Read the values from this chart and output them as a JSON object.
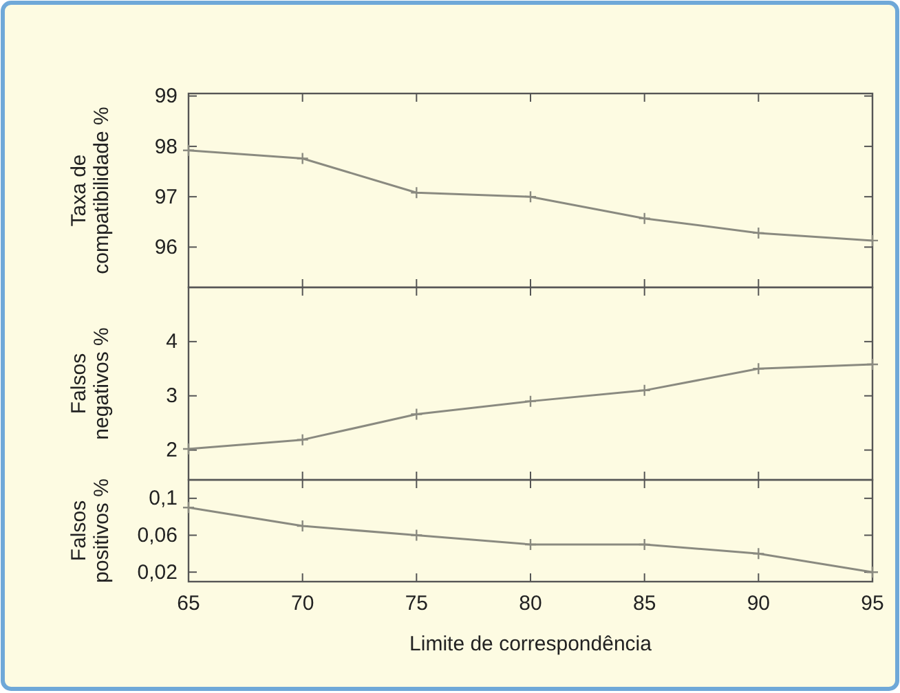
{
  "chart_data": [
    {
      "type": "line",
      "ylabel": "Taxa de compatibilidade %",
      "x": [
        65,
        70,
        75,
        80,
        85,
        90,
        95
      ],
      "xlim": [
        65,
        95
      ],
      "xticks": [
        65,
        70,
        75,
        80,
        85,
        90,
        95
      ],
      "ylim": [
        95.2,
        99.05
      ],
      "yticks": [
        96,
        97,
        98,
        99
      ],
      "tick_labels": "y",
      "marker": "cross",
      "series": [
        {
          "color": "#8a8a80",
          "values": [
            97.92,
            97.76,
            97.08,
            97.0,
            96.57,
            96.28,
            96.13
          ]
        }
      ]
    },
    {
      "type": "line",
      "ylabel": "Falsos negativos %",
      "x": [
        65,
        70,
        75,
        80,
        85,
        90,
        95
      ],
      "xlim": [
        65,
        95
      ],
      "xticks": [
        65,
        70,
        75,
        80,
        85,
        90,
        95
      ],
      "ylim": [
        1.45,
        5.0
      ],
      "yticks": [
        2,
        3,
        4
      ],
      "tick_labels": "y",
      "marker": "cross",
      "series": [
        {
          "color": "#8a8a80",
          "values": [
            2.02,
            2.19,
            2.66,
            2.9,
            3.1,
            3.5,
            3.58
          ]
        }
      ]
    },
    {
      "type": "line",
      "ylabel": "Falsos positivos %",
      "xlabel": "Limite de correspondência",
      "x": [
        65,
        70,
        75,
        80,
        85,
        90,
        95
      ],
      "xlim": [
        65,
        95
      ],
      "xticks": [
        65,
        70,
        75,
        80,
        85,
        90,
        95
      ],
      "ylim": [
        0.0097,
        0.12
      ],
      "yticks": [
        {
          "value": 0.02,
          "label": "0,02"
        },
        {
          "value": 0.06,
          "label": "0,06"
        },
        {
          "value": 0.1,
          "label": "0,1"
        }
      ],
      "marker": "cross",
      "series": [
        {
          "color": "#8a8a80",
          "values": [
            0.09,
            0.07,
            0.06,
            0.05,
            0.05,
            0.04,
            0.02
          ]
        }
      ]
    }
  ]
}
